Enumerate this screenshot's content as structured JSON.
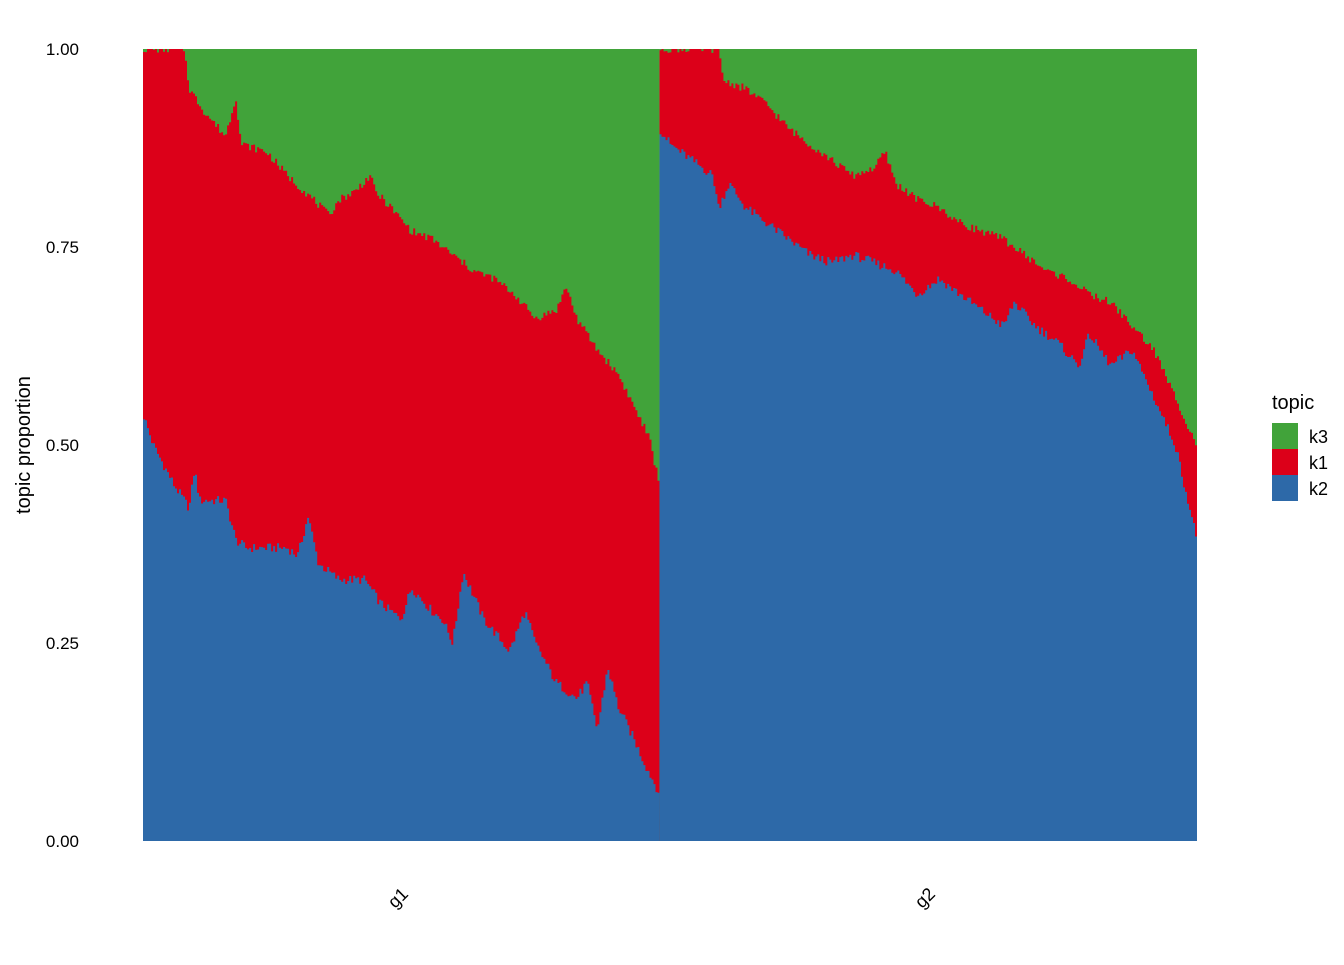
{
  "chart_data": {
    "type": "area",
    "subtype": "structure-plot (stacked 100% bars per sample)",
    "ylabel": "topic proportion",
    "xlabel": "",
    "ylim": [
      0,
      1
    ],
    "yticks": [
      "0.00",
      "0.25",
      "0.50",
      "0.75",
      "1.00"
    ],
    "grid": false,
    "legend": {
      "title": "topic",
      "position": "right",
      "entries": [
        "k3",
        "k1",
        "k2"
      ]
    },
    "stack_order": [
      "k2",
      "k1",
      "k3"
    ],
    "colors": {
      "k3": "#41A33A",
      "k1": "#DC0019",
      "k2": "#2D69A8"
    },
    "groups": [
      {
        "name": "g1",
        "sample_fraction": 0.49,
        "k2_profile": [
          [
            0,
            0.54
          ],
          [
            0.02,
            0.5
          ],
          [
            0.06,
            0.45
          ],
          [
            0.09,
            0.42
          ],
          [
            0.1,
            0.47
          ],
          [
            0.11,
            0.43
          ],
          [
            0.16,
            0.43
          ],
          [
            0.18,
            0.38
          ],
          [
            0.2,
            0.37
          ],
          [
            0.28,
            0.37
          ],
          [
            0.3,
            0.36
          ],
          [
            0.32,
            0.41
          ],
          [
            0.34,
            0.35
          ],
          [
            0.38,
            0.33
          ],
          [
            0.43,
            0.33
          ],
          [
            0.46,
            0.3
          ],
          [
            0.5,
            0.28
          ],
          [
            0.52,
            0.32
          ],
          [
            0.56,
            0.29
          ],
          [
            0.58,
            0.28
          ],
          [
            0.6,
            0.25
          ],
          [
            0.62,
            0.34
          ],
          [
            0.64,
            0.31
          ],
          [
            0.66,
            0.28
          ],
          [
            0.71,
            0.24
          ],
          [
            0.74,
            0.29
          ],
          [
            0.76,
            0.25
          ],
          [
            0.8,
            0.2
          ],
          [
            0.84,
            0.18
          ],
          [
            0.86,
            0.2
          ],
          [
            0.88,
            0.14
          ],
          [
            0.9,
            0.22
          ],
          [
            0.92,
            0.17
          ],
          [
            0.95,
            0.13
          ],
          [
            0.97,
            0.1
          ],
          [
            1.0,
            0.06
          ]
        ],
        "k1_k2_profile": [
          [
            0,
            1.0
          ],
          [
            0.08,
            1.0
          ],
          [
            0.09,
            0.95
          ],
          [
            0.12,
            0.92
          ],
          [
            0.16,
            0.89
          ],
          [
            0.18,
            0.94
          ],
          [
            0.19,
            0.88
          ],
          [
            0.24,
            0.87
          ],
          [
            0.28,
            0.84
          ],
          [
            0.33,
            0.81
          ],
          [
            0.36,
            0.79
          ],
          [
            0.38,
            0.81
          ],
          [
            0.41,
            0.82
          ],
          [
            0.44,
            0.84
          ],
          [
            0.45,
            0.82
          ],
          [
            0.48,
            0.8
          ],
          [
            0.52,
            0.77
          ],
          [
            0.56,
            0.76
          ],
          [
            0.6,
            0.74
          ],
          [
            0.64,
            0.72
          ],
          [
            0.68,
            0.71
          ],
          [
            0.72,
            0.69
          ],
          [
            0.76,
            0.66
          ],
          [
            0.8,
            0.67
          ],
          [
            0.82,
            0.7
          ],
          [
            0.84,
            0.66
          ],
          [
            0.88,
            0.62
          ],
          [
            0.92,
            0.59
          ],
          [
            0.95,
            0.55
          ],
          [
            0.98,
            0.51
          ],
          [
            1.0,
            0.45
          ]
        ]
      },
      {
        "name": "g2",
        "sample_fraction": 0.51,
        "k2_profile": [
          [
            0,
            0.9
          ],
          [
            0.02,
            0.88
          ],
          [
            0.06,
            0.86
          ],
          [
            0.1,
            0.84
          ],
          [
            0.11,
            0.8
          ],
          [
            0.13,
            0.83
          ],
          [
            0.16,
            0.8
          ],
          [
            0.2,
            0.78
          ],
          [
            0.24,
            0.76
          ],
          [
            0.28,
            0.74
          ],
          [
            0.32,
            0.73
          ],
          [
            0.36,
            0.74
          ],
          [
            0.4,
            0.73
          ],
          [
            0.44,
            0.72
          ],
          [
            0.48,
            0.69
          ],
          [
            0.52,
            0.71
          ],
          [
            0.56,
            0.69
          ],
          [
            0.6,
            0.67
          ],
          [
            0.64,
            0.65
          ],
          [
            0.66,
            0.68
          ],
          [
            0.7,
            0.65
          ],
          [
            0.74,
            0.63
          ],
          [
            0.78,
            0.6
          ],
          [
            0.8,
            0.64
          ],
          [
            0.84,
            0.6
          ],
          [
            0.88,
            0.62
          ],
          [
            0.92,
            0.56
          ],
          [
            0.96,
            0.5
          ],
          [
            1.0,
            0.38
          ]
        ],
        "k1_k2_profile": [
          [
            0,
            1.0
          ],
          [
            0.11,
            1.0
          ],
          [
            0.12,
            0.96
          ],
          [
            0.16,
            0.95
          ],
          [
            0.2,
            0.93
          ],
          [
            0.24,
            0.9
          ],
          [
            0.28,
            0.88
          ],
          [
            0.32,
            0.86
          ],
          [
            0.36,
            0.84
          ],
          [
            0.4,
            0.85
          ],
          [
            0.42,
            0.87
          ],
          [
            0.44,
            0.83
          ],
          [
            0.48,
            0.81
          ],
          [
            0.52,
            0.8
          ],
          [
            0.56,
            0.78
          ],
          [
            0.6,
            0.77
          ],
          [
            0.64,
            0.76
          ],
          [
            0.68,
            0.74
          ],
          [
            0.72,
            0.72
          ],
          [
            0.76,
            0.71
          ],
          [
            0.8,
            0.69
          ],
          [
            0.84,
            0.68
          ],
          [
            0.88,
            0.65
          ],
          [
            0.92,
            0.62
          ],
          [
            0.96,
            0.56
          ],
          [
            1.0,
            0.5
          ]
        ]
      }
    ]
  }
}
